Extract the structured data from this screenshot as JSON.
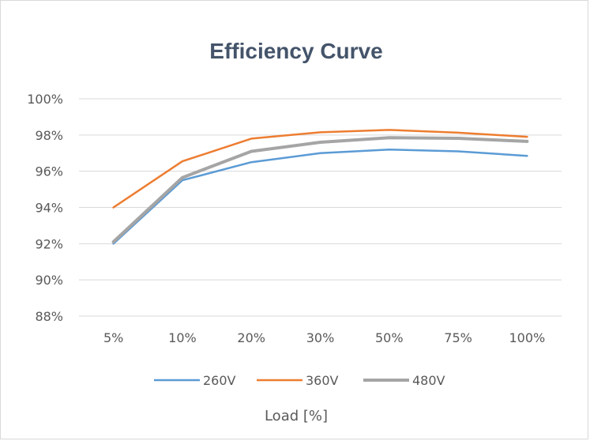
{
  "chart_data": {
    "type": "line",
    "title": "Efficiency Curve",
    "xlabel": "Load [%]",
    "ylabel": "",
    "categories": [
      "5%",
      "10%",
      "20%",
      "30%",
      "50%",
      "75%",
      "100%"
    ],
    "ylim": [
      88,
      100
    ],
    "yticks": [
      88,
      90,
      92,
      94,
      96,
      98,
      100
    ],
    "ytick_labels": [
      "88%",
      "90%",
      "92%",
      "94%",
      "96%",
      "98%",
      "100%"
    ],
    "grid": true,
    "legend_position": "bottom",
    "series": [
      {
        "name": "260V",
        "color": "#5b9bd5",
        "values": [
          92.0,
          95.5,
          96.5,
          97.0,
          97.2,
          97.1,
          96.85
        ]
      },
      {
        "name": "360V",
        "color": "#ed7d31",
        "values": [
          94.0,
          96.55,
          97.8,
          98.15,
          98.28,
          98.13,
          97.9
        ]
      },
      {
        "name": "480V",
        "color": "#a5a5a5",
        "values": [
          92.1,
          95.65,
          97.1,
          97.6,
          97.85,
          97.82,
          97.65
        ]
      }
    ]
  }
}
